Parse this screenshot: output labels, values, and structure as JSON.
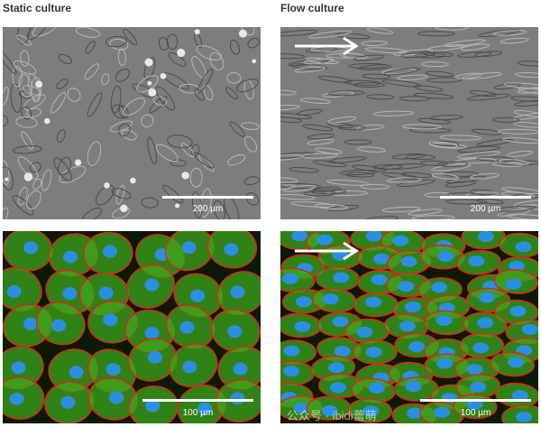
{
  "columns": [
    {
      "title": "Static culture"
    },
    {
      "title": "Flow culture"
    }
  ],
  "panels": [
    {
      "type": "phase-contrast",
      "condition": "static",
      "scale_label": "200 µm",
      "flow_arrow": false
    },
    {
      "type": "phase-contrast",
      "condition": "flow",
      "scale_label": "200 µm",
      "flow_arrow": true
    },
    {
      "type": "fluorescence",
      "condition": "static",
      "scale_label": "100 µm",
      "flow_arrow": false
    },
    {
      "type": "fluorescence",
      "condition": "flow",
      "scale_label": "100 µm",
      "flow_arrow": true
    }
  ],
  "watermark": "公众号 · ibidi蕾萌",
  "colors": {
    "nuclei": "#2a8fe0",
    "actin": "#3fa51c",
    "junctions": "#d8281a",
    "phase": "#7d7d7d"
  }
}
